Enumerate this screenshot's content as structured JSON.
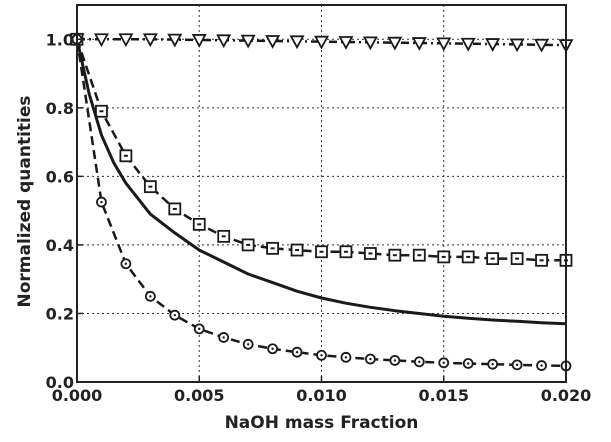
{
  "chart_data": {
    "type": "line",
    "title": "",
    "xlabel": "NaOH mass Fraction",
    "ylabel": "Normalized quantities",
    "xlim": [
      0.0,
      0.02
    ],
    "ylim": [
      0.0,
      1.1
    ],
    "grid": true,
    "legend": "none",
    "x_ticks": [
      "0.000",
      "0.005",
      "0.010",
      "0.015",
      "0.020"
    ],
    "y_ticks": [
      "0.0",
      "0.2",
      "0.4",
      "0.6",
      "0.8",
      "1.0"
    ],
    "x_tick_values": [
      0.0,
      0.005,
      0.01,
      0.015,
      0.02
    ],
    "y_tick_values": [
      0.0,
      0.2,
      0.4,
      0.6,
      0.8,
      1.0
    ],
    "series": [
      {
        "marker": "triangle-down",
        "line_style": "dash-dot",
        "x": [
          0.0,
          0.001,
          0.002,
          0.003,
          0.004,
          0.005,
          0.006,
          0.007,
          0.008,
          0.009,
          0.01,
          0.011,
          0.012,
          0.013,
          0.014,
          0.015,
          0.016,
          0.017,
          0.018,
          0.019,
          0.02
        ],
        "y": [
          1.0,
          1.0,
          1.0,
          1.0,
          0.999,
          0.998,
          0.997,
          0.996,
          0.995,
          0.994,
          0.993,
          0.992,
          0.991,
          0.99,
          0.989,
          0.988,
          0.987,
          0.986,
          0.985,
          0.984,
          0.983
        ]
      },
      {
        "marker": "square",
        "line_style": "dashed",
        "x": [
          0.0,
          0.001,
          0.002,
          0.003,
          0.004,
          0.005,
          0.006,
          0.007,
          0.008,
          0.009,
          0.01,
          0.011,
          0.012,
          0.013,
          0.014,
          0.015,
          0.016,
          0.017,
          0.018,
          0.019,
          0.02
        ],
        "y": [
          1.0,
          0.79,
          0.66,
          0.57,
          0.505,
          0.46,
          0.425,
          0.4,
          0.39,
          0.385,
          0.38,
          0.38,
          0.375,
          0.37,
          0.37,
          0.365,
          0.365,
          0.36,
          0.36,
          0.355,
          0.355
        ]
      },
      {
        "marker": "none",
        "line_style": "solid",
        "x": [
          0.0,
          0.0005,
          0.001,
          0.0015,
          0.002,
          0.003,
          0.004,
          0.005,
          0.006,
          0.007,
          0.008,
          0.009,
          0.01,
          0.011,
          0.012,
          0.013,
          0.014,
          0.015,
          0.016,
          0.017,
          0.018,
          0.019,
          0.02
        ],
        "y": [
          1.0,
          0.84,
          0.72,
          0.64,
          0.58,
          0.49,
          0.435,
          0.385,
          0.35,
          0.315,
          0.29,
          0.265,
          0.245,
          0.23,
          0.218,
          0.208,
          0.2,
          0.192,
          0.186,
          0.181,
          0.177,
          0.173,
          0.17
        ]
      },
      {
        "marker": "circle",
        "line_style": "dashed",
        "x": [
          0.0,
          0.001,
          0.002,
          0.003,
          0.004,
          0.005,
          0.006,
          0.007,
          0.008,
          0.009,
          0.01,
          0.011,
          0.012,
          0.013,
          0.014,
          0.015,
          0.016,
          0.017,
          0.018,
          0.019,
          0.02
        ],
        "y": [
          1.0,
          0.525,
          0.345,
          0.25,
          0.195,
          0.155,
          0.13,
          0.11,
          0.097,
          0.087,
          0.078,
          0.072,
          0.067,
          0.063,
          0.059,
          0.056,
          0.054,
          0.052,
          0.05,
          0.048,
          0.047
        ]
      }
    ]
  }
}
